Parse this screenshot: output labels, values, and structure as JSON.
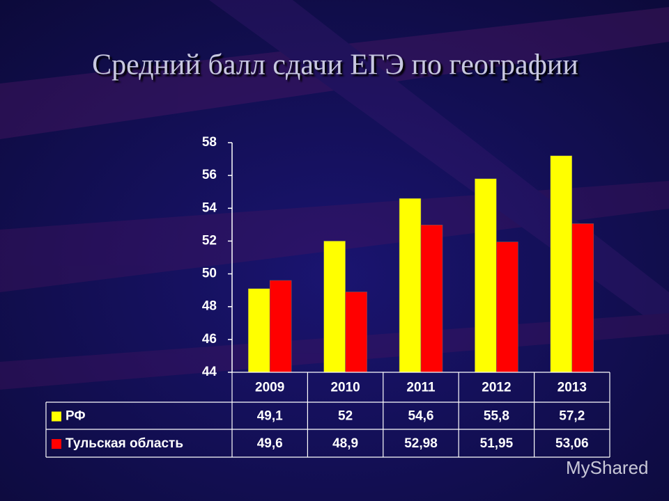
{
  "chart_data": {
    "type": "bar",
    "title": "Средний балл сдачи ЕГЭ по географии",
    "categories": [
      "2009",
      "2010",
      "2011",
      "2012",
      "2013"
    ],
    "series": [
      {
        "name": "РФ",
        "color": "#ffff00",
        "values": [
          49.1,
          52,
          54.6,
          55.8,
          57.2
        ],
        "value_labels": [
          "49,1",
          "52",
          "54,6",
          "55,8",
          "57,2"
        ]
      },
      {
        "name": "Тульская область",
        "color": "#ff0000",
        "values": [
          49.6,
          48.9,
          52.98,
          51.95,
          53.06
        ],
        "value_labels": [
          "49,6",
          "48,9",
          "52,98",
          "51,95",
          "53,06"
        ]
      }
    ],
    "ylim": [
      44,
      58
    ],
    "yticks": [
      44,
      46,
      48,
      50,
      52,
      54,
      56,
      58
    ]
  },
  "watermark": "MyShared"
}
